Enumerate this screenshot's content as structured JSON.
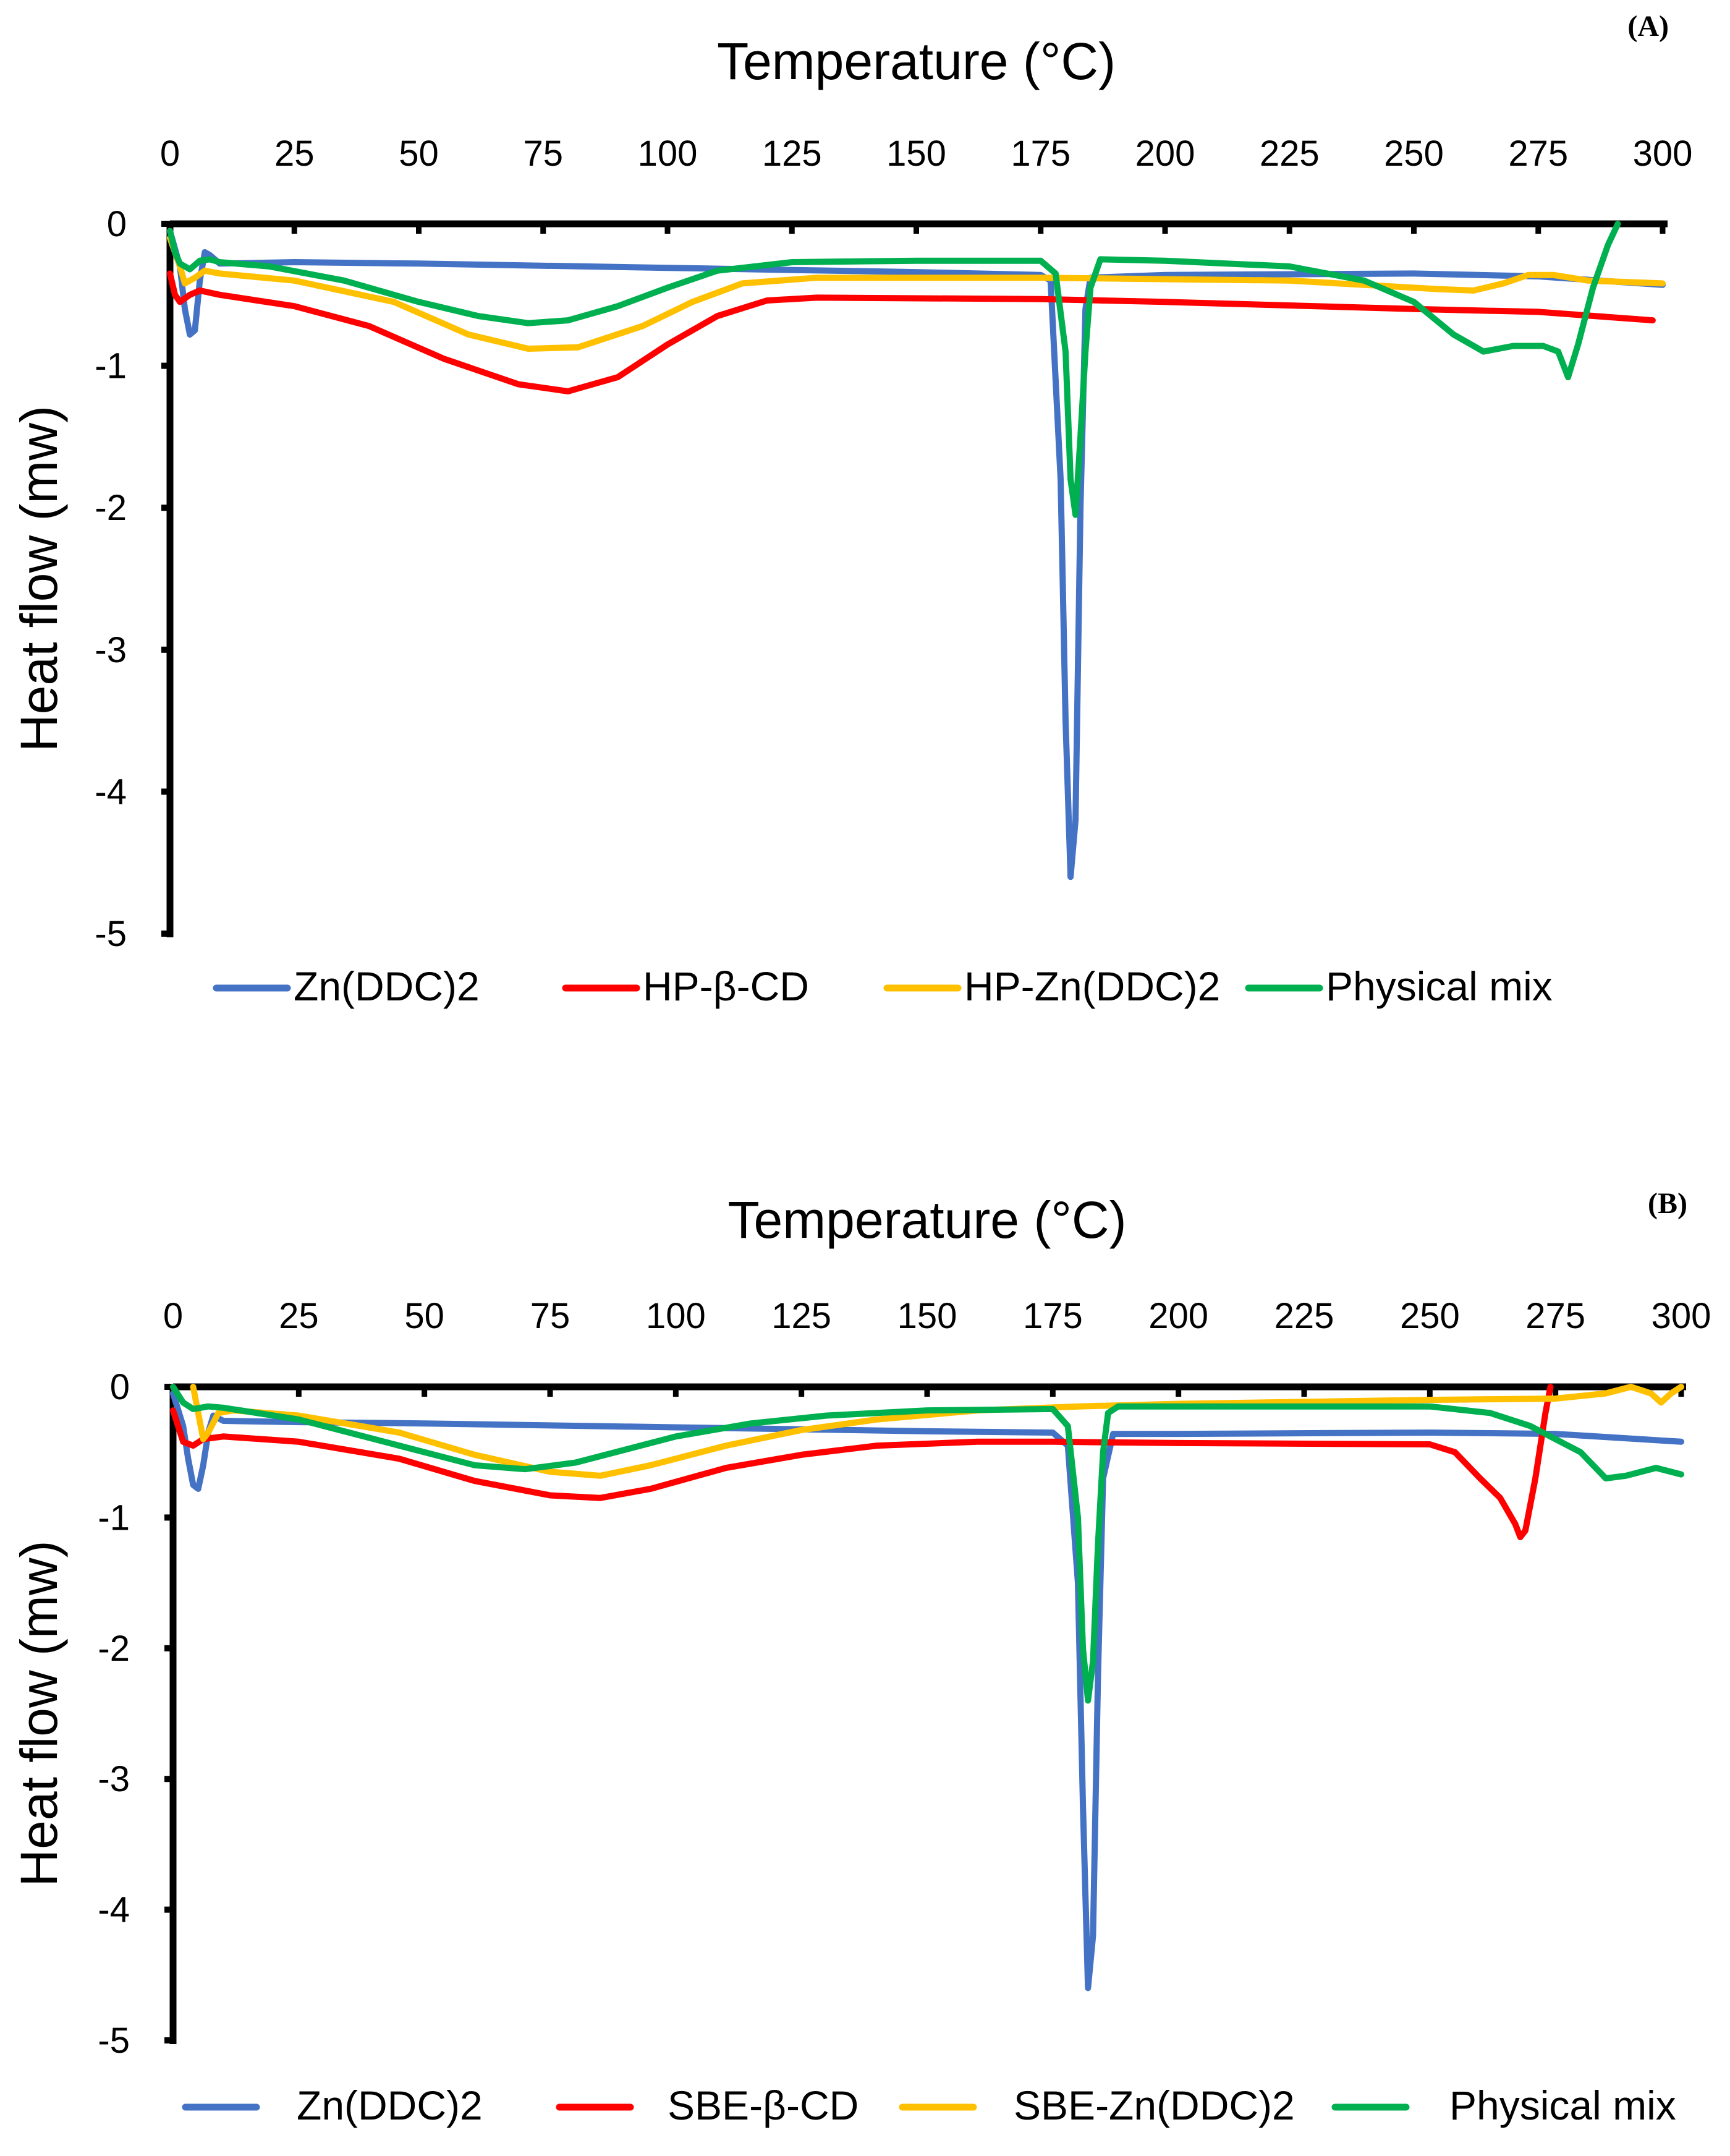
{
  "chart_data": [
    {
      "type": "line",
      "panel_label": "(A)",
      "xlabel": "Temperature (°C)",
      "ylabel": "Heat flow (mw)",
      "xlim": [
        0,
        300
      ],
      "ylim": [
        -5,
        0
      ],
      "x_ticks": [
        "0",
        "25",
        "50",
        "75",
        "100",
        "125",
        "150",
        "175",
        "200",
        "225",
        "250",
        "275",
        "300"
      ],
      "y_ticks": [
        "0",
        "-1",
        "-2",
        "-3",
        "-4",
        "-5"
      ],
      "legend_position": "bottom",
      "series": [
        {
          "name": "Zn(DDC)2",
          "color": "#4472C4",
          "points": [
            [
              0,
              -0.05
            ],
            [
              2,
              -0.3
            ],
            [
              3,
              -0.6
            ],
            [
              4,
              -0.78
            ],
            [
              5,
              -0.75
            ],
            [
              6,
              -0.4
            ],
            [
              7,
              -0.2
            ],
            [
              8,
              -0.22
            ],
            [
              10,
              -0.28
            ],
            [
              25,
              -0.27
            ],
            [
              50,
              -0.28
            ],
            [
              100,
              -0.31
            ],
            [
              150,
              -0.34
            ],
            [
              175,
              -0.36
            ],
            [
              177,
              -0.4
            ],
            [
              179,
              -1.8
            ],
            [
              180,
              -3.5
            ],
            [
              181,
              -4.6
            ],
            [
              182,
              -4.2
            ],
            [
              183,
              -2.0
            ],
            [
              184,
              -0.6
            ],
            [
              185,
              -0.38
            ],
            [
              200,
              -0.36
            ],
            [
              250,
              -0.35
            ],
            [
              275,
              -0.37
            ],
            [
              300,
              -0.43
            ]
          ]
        },
        {
          "name": "HP-β-CD",
          "color": "#FF0000",
          "points": [
            [
              0,
              -0.35
            ],
            [
              1,
              -0.5
            ],
            [
              2,
              -0.55
            ],
            [
              4,
              -0.5
            ],
            [
              6,
              -0.47
            ],
            [
              10,
              -0.5
            ],
            [
              25,
              -0.58
            ],
            [
              40,
              -0.72
            ],
            [
              55,
              -0.95
            ],
            [
              70,
              -1.13
            ],
            [
              80,
              -1.18
            ],
            [
              90,
              -1.08
            ],
            [
              100,
              -0.85
            ],
            [
              110,
              -0.65
            ],
            [
              120,
              -0.54
            ],
            [
              130,
              -0.52
            ],
            [
              175,
              -0.53
            ],
            [
              200,
              -0.55
            ],
            [
              250,
              -0.6
            ],
            [
              275,
              -0.62
            ],
            [
              298,
              -0.68
            ]
          ]
        },
        {
          "name": "HP-Zn(DDC)2",
          "color": "#FFC000",
          "points": [
            [
              0,
              -0.1
            ],
            [
              2,
              -0.3
            ],
            [
              3,
              -0.42
            ],
            [
              5,
              -0.38
            ],
            [
              7,
              -0.33
            ],
            [
              10,
              -0.35
            ],
            [
              25,
              -0.4
            ],
            [
              45,
              -0.55
            ],
            [
              60,
              -0.78
            ],
            [
              72,
              -0.88
            ],
            [
              82,
              -0.87
            ],
            [
              95,
              -0.72
            ],
            [
              105,
              -0.55
            ],
            [
              115,
              -0.42
            ],
            [
              130,
              -0.38
            ],
            [
              175,
              -0.38
            ],
            [
              225,
              -0.4
            ],
            [
              255,
              -0.46
            ],
            [
              262,
              -0.47
            ],
            [
              268,
              -0.42
            ],
            [
              273,
              -0.36
            ],
            [
              278,
              -0.36
            ],
            [
              285,
              -0.4
            ],
            [
              300,
              -0.42
            ]
          ]
        },
        {
          "name": "Physical mix",
          "color": "#00B050",
          "points": [
            [
              0,
              -0.05
            ],
            [
              1,
              -0.2
            ],
            [
              2,
              -0.28
            ],
            [
              4,
              -0.32
            ],
            [
              6,
              -0.26
            ],
            [
              8,
              -0.25
            ],
            [
              10,
              -0.27
            ],
            [
              20,
              -0.3
            ],
            [
              35,
              -0.4
            ],
            [
              50,
              -0.55
            ],
            [
              62,
              -0.65
            ],
            [
              72,
              -0.7
            ],
            [
              80,
              -0.68
            ],
            [
              90,
              -0.58
            ],
            [
              100,
              -0.45
            ],
            [
              110,
              -0.33
            ],
            [
              125,
              -0.27
            ],
            [
              150,
              -0.26
            ],
            [
              175,
              -0.26
            ],
            [
              178,
              -0.35
            ],
            [
              180,
              -0.9
            ],
            [
              181,
              -1.8
            ],
            [
              182,
              -2.05
            ],
            [
              183,
              -1.5
            ],
            [
              184,
              -0.9
            ],
            [
              185,
              -0.45
            ],
            [
              187,
              -0.25
            ],
            [
              200,
              -0.26
            ],
            [
              225,
              -0.3
            ],
            [
              240,
              -0.4
            ],
            [
              250,
              -0.55
            ],
            [
              258,
              -0.78
            ],
            [
              264,
              -0.9
            ],
            [
              270,
              -0.86
            ],
            [
              276,
              -0.86
            ],
            [
              279,
              -0.9
            ],
            [
              281,
              -1.08
            ],
            [
              283,
              -0.85
            ],
            [
              286,
              -0.45
            ],
            [
              289,
              -0.15
            ],
            [
              291,
              0
            ]
          ]
        }
      ]
    },
    {
      "type": "line",
      "panel_label": "(B)",
      "xlabel": "Temperature (°C)",
      "ylabel": "Heat flow (mw)",
      "xlim": [
        0,
        300
      ],
      "ylim": [
        -5,
        0
      ],
      "x_ticks": [
        "0",
        "25",
        "50",
        "75",
        "100",
        "125",
        "150",
        "175",
        "200",
        "225",
        "250",
        "275",
        "300"
      ],
      "y_ticks": [
        "0",
        "-1",
        "-2",
        "-3",
        "-4",
        "-5"
      ],
      "legend_position": "bottom",
      "series": [
        {
          "name": "Zn(DDC)2",
          "color": "#4472C4",
          "points": [
            [
              0,
              -0.05
            ],
            [
              2,
              -0.3
            ],
            [
              3,
              -0.55
            ],
            [
              4,
              -0.75
            ],
            [
              5,
              -0.78
            ],
            [
              6,
              -0.6
            ],
            [
              7,
              -0.35
            ],
            [
              8,
              -0.22
            ],
            [
              10,
              -0.26
            ],
            [
              25,
              -0.27
            ],
            [
              50,
              -0.28
            ],
            [
              100,
              -0.31
            ],
            [
              150,
              -0.34
            ],
            [
              175,
              -0.35
            ],
            [
              178,
              -0.45
            ],
            [
              180,
              -1.5
            ],
            [
              181,
              -3.2
            ],
            [
              182,
              -4.6
            ],
            [
              183,
              -4.2
            ],
            [
              184,
              -2.2
            ],
            [
              185,
              -0.7
            ],
            [
              187,
              -0.36
            ],
            [
              200,
              -0.36
            ],
            [
              250,
              -0.35
            ],
            [
              275,
              -0.36
            ],
            [
              300,
              -0.42
            ]
          ]
        },
        {
          "name": "SBE-β-CD",
          "color": "#FF0000",
          "points": [
            [
              0,
              -0.18
            ],
            [
              2,
              -0.42
            ],
            [
              4,
              -0.45
            ],
            [
              6,
              -0.4
            ],
            [
              10,
              -0.38
            ],
            [
              25,
              -0.42
            ],
            [
              45,
              -0.55
            ],
            [
              60,
              -0.72
            ],
            [
              75,
              -0.83
            ],
            [
              85,
              -0.85
            ],
            [
              95,
              -0.78
            ],
            [
              110,
              -0.62
            ],
            [
              125,
              -0.52
            ],
            [
              140,
              -0.45
            ],
            [
              160,
              -0.42
            ],
            [
              175,
              -0.42
            ],
            [
              200,
              -0.43
            ],
            [
              250,
              -0.44
            ],
            [
              255,
              -0.5
            ],
            [
              260,
              -0.7
            ],
            [
              264,
              -0.85
            ],
            [
              267,
              -1.05
            ],
            [
              268,
              -1.15
            ],
            [
              269,
              -1.1
            ],
            [
              271,
              -0.7
            ],
            [
              273,
              -0.2
            ],
            [
              274,
              0
            ]
          ]
        },
        {
          "name": "SBE-Zn(DDC)2",
          "color": "#FFC000",
          "points": [
            [
              4,
              0
            ],
            [
              5,
              -0.2
            ],
            [
              6,
              -0.4
            ],
            [
              7,
              -0.35
            ],
            [
              9,
              -0.2
            ],
            [
              12,
              -0.18
            ],
            [
              25,
              -0.22
            ],
            [
              45,
              -0.35
            ],
            [
              60,
              -0.52
            ],
            [
              75,
              -0.65
            ],
            [
              85,
              -0.68
            ],
            [
              95,
              -0.6
            ],
            [
              110,
              -0.45
            ],
            [
              125,
              -0.33
            ],
            [
              140,
              -0.25
            ],
            [
              160,
              -0.18
            ],
            [
              180,
              -0.15
            ],
            [
              200,
              -0.13
            ],
            [
              250,
              -0.1
            ],
            [
              275,
              -0.09
            ],
            [
              285,
              -0.05
            ],
            [
              290,
              0
            ],
            [
              294,
              -0.05
            ],
            [
              296,
              -0.12
            ],
            [
              298,
              -0.05
            ],
            [
              300,
              0
            ]
          ]
        },
        {
          "name": "Physical mix",
          "color": "#00B050",
          "points": [
            [
              0,
              0
            ],
            [
              2,
              -0.12
            ],
            [
              4,
              -0.17
            ],
            [
              7,
              -0.15
            ],
            [
              10,
              -0.16
            ],
            [
              25,
              -0.25
            ],
            [
              45,
              -0.45
            ],
            [
              60,
              -0.6
            ],
            [
              70,
              -0.63
            ],
            [
              80,
              -0.58
            ],
            [
              90,
              -0.48
            ],
            [
              100,
              -0.38
            ],
            [
              115,
              -0.28
            ],
            [
              130,
              -0.22
            ],
            [
              150,
              -0.18
            ],
            [
              175,
              -0.17
            ],
            [
              178,
              -0.3
            ],
            [
              180,
              -1.0
            ],
            [
              181,
              -2.0
            ],
            [
              182,
              -2.4
            ],
            [
              183,
              -2.1
            ],
            [
              184,
              -1.2
            ],
            [
              185,
              -0.5
            ],
            [
              186,
              -0.2
            ],
            [
              188,
              -0.15
            ],
            [
              200,
              -0.15
            ],
            [
              250,
              -0.15
            ],
            [
              262,
              -0.2
            ],
            [
              270,
              -0.3
            ],
            [
              280,
              -0.5
            ],
            [
              285,
              -0.7
            ],
            [
              289,
              -0.68
            ],
            [
              295,
              -0.62
            ],
            [
              300,
              -0.67
            ]
          ]
        }
      ]
    }
  ]
}
